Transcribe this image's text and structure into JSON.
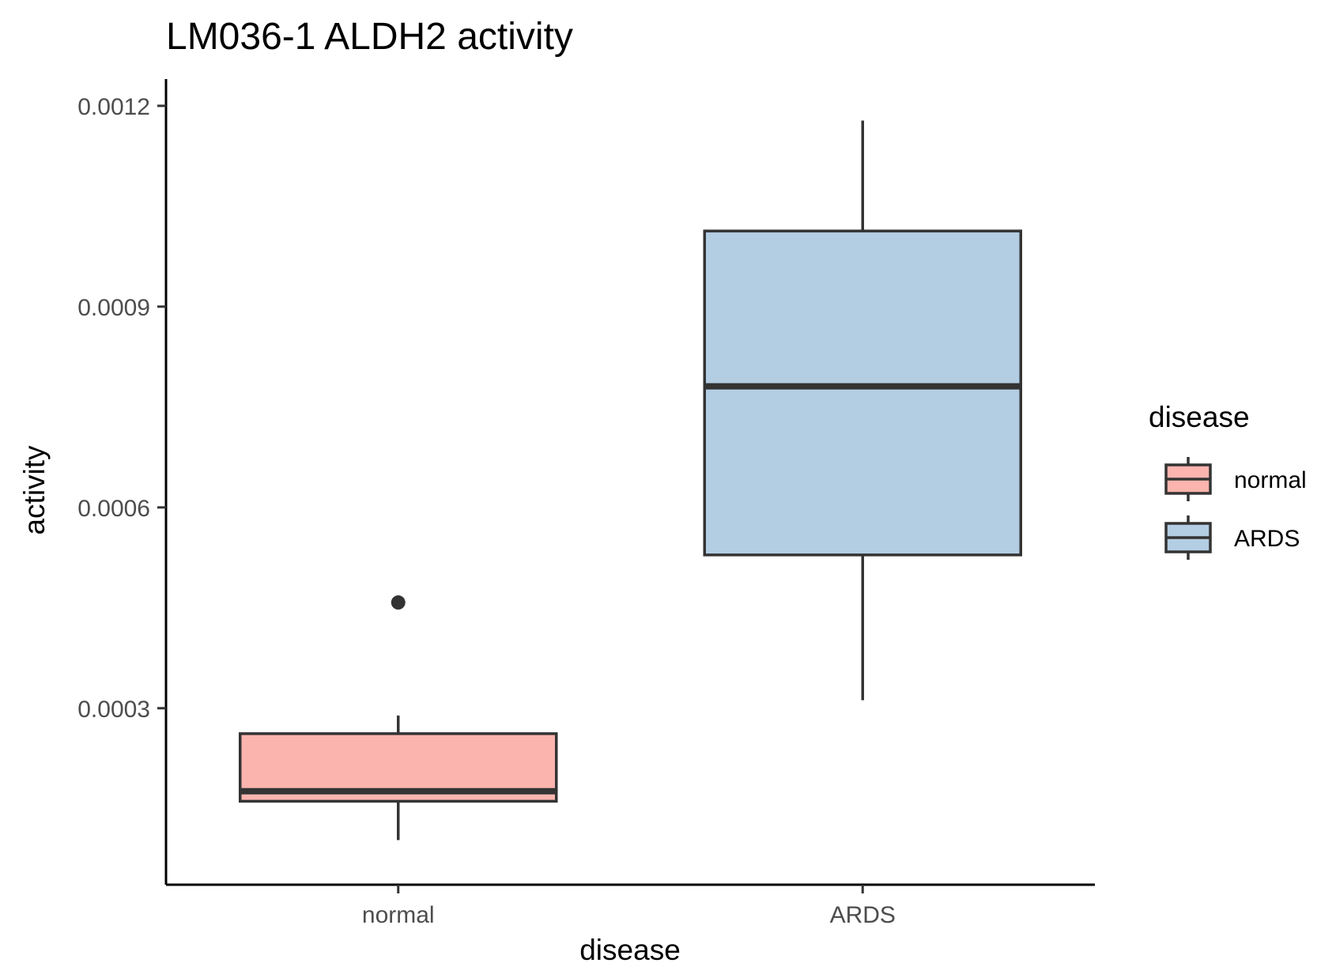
{
  "chart_data": {
    "type": "boxplot",
    "title": "LM036-1 ALDH2 activity",
    "xlabel": "disease",
    "ylabel": "activity",
    "categories": [
      "normal",
      "ARDS"
    ],
    "ylim": [
      3.63e-05,
      0.00124
    ],
    "yticks": [
      0.0003,
      0.0006,
      0.0009,
      0.0012
    ],
    "ytick_labels": [
      "0.0003",
      "0.0006",
      "0.0009",
      "0.0012"
    ],
    "grid": false,
    "legend": {
      "title": "disease",
      "position": "right",
      "entries": [
        "normal",
        "ARDS"
      ]
    },
    "series": [
      {
        "name": "normal",
        "color": "#FBB4AE",
        "whisker_low": 0.000103,
        "q1": 0.000161,
        "median": 0.000176,
        "q3": 0.000262,
        "whisker_high": 0.000289,
        "outliers": [
          0.000458
        ]
      },
      {
        "name": "ARDS",
        "color": "#B3CDE3",
        "whisker_low": 0.000312,
        "q1": 0.000529,
        "median": 0.000781,
        "q3": 0.001013,
        "whisker_high": 0.001178,
        "outliers": []
      }
    ],
    "line_color": "#333333"
  }
}
